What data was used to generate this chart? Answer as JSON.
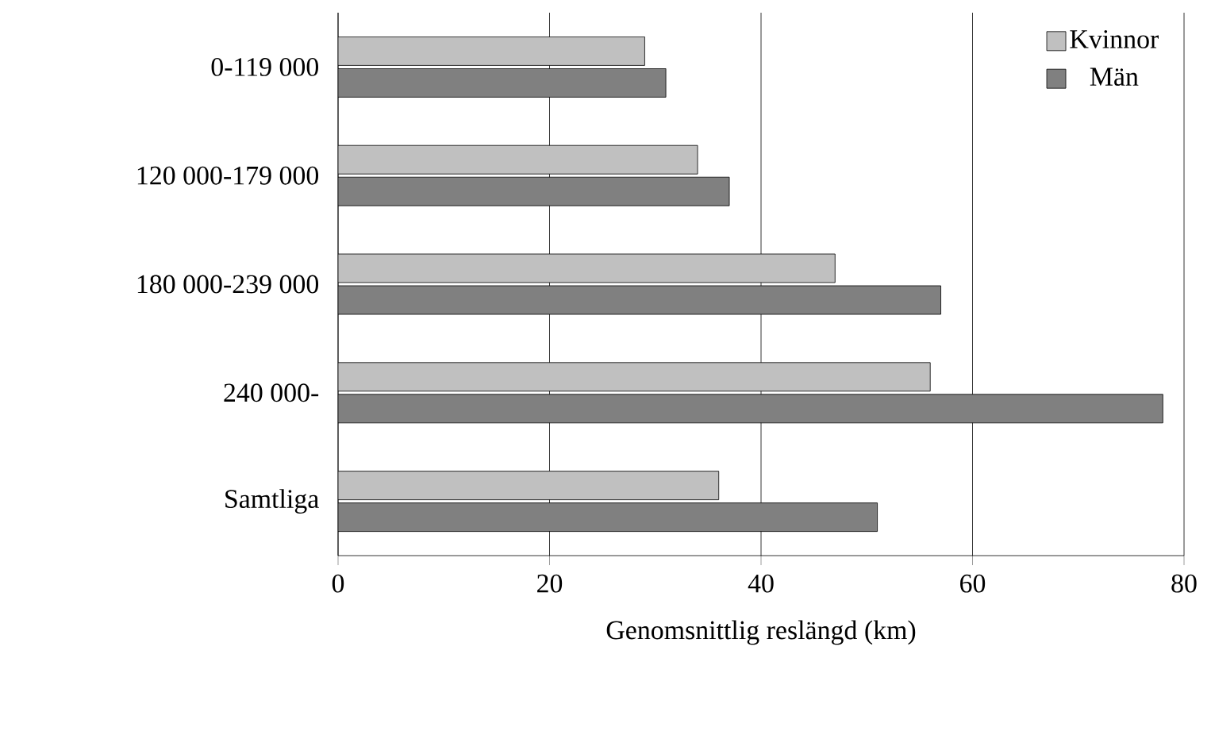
{
  "chart_data": {
    "type": "bar",
    "orientation": "horizontal",
    "xlabel": "Genomsnittlig reslängd (km)",
    "categories": [
      "0-119 000",
      "120 000-179 000",
      "180 000-239 000",
      "240 000-",
      "Samtliga"
    ],
    "series": [
      {
        "name": "Kvinnor",
        "color": "#c0c0c0",
        "values": [
          29,
          34,
          47,
          56,
          36
        ]
      },
      {
        "name": "Män",
        "color": "#808080",
        "values": [
          31,
          37,
          57,
          78,
          51
        ]
      }
    ],
    "xlim": [
      0,
      80
    ],
    "xticks": [
      0,
      20,
      40,
      60,
      80
    ],
    "grid": "x",
    "legend": "top right"
  }
}
